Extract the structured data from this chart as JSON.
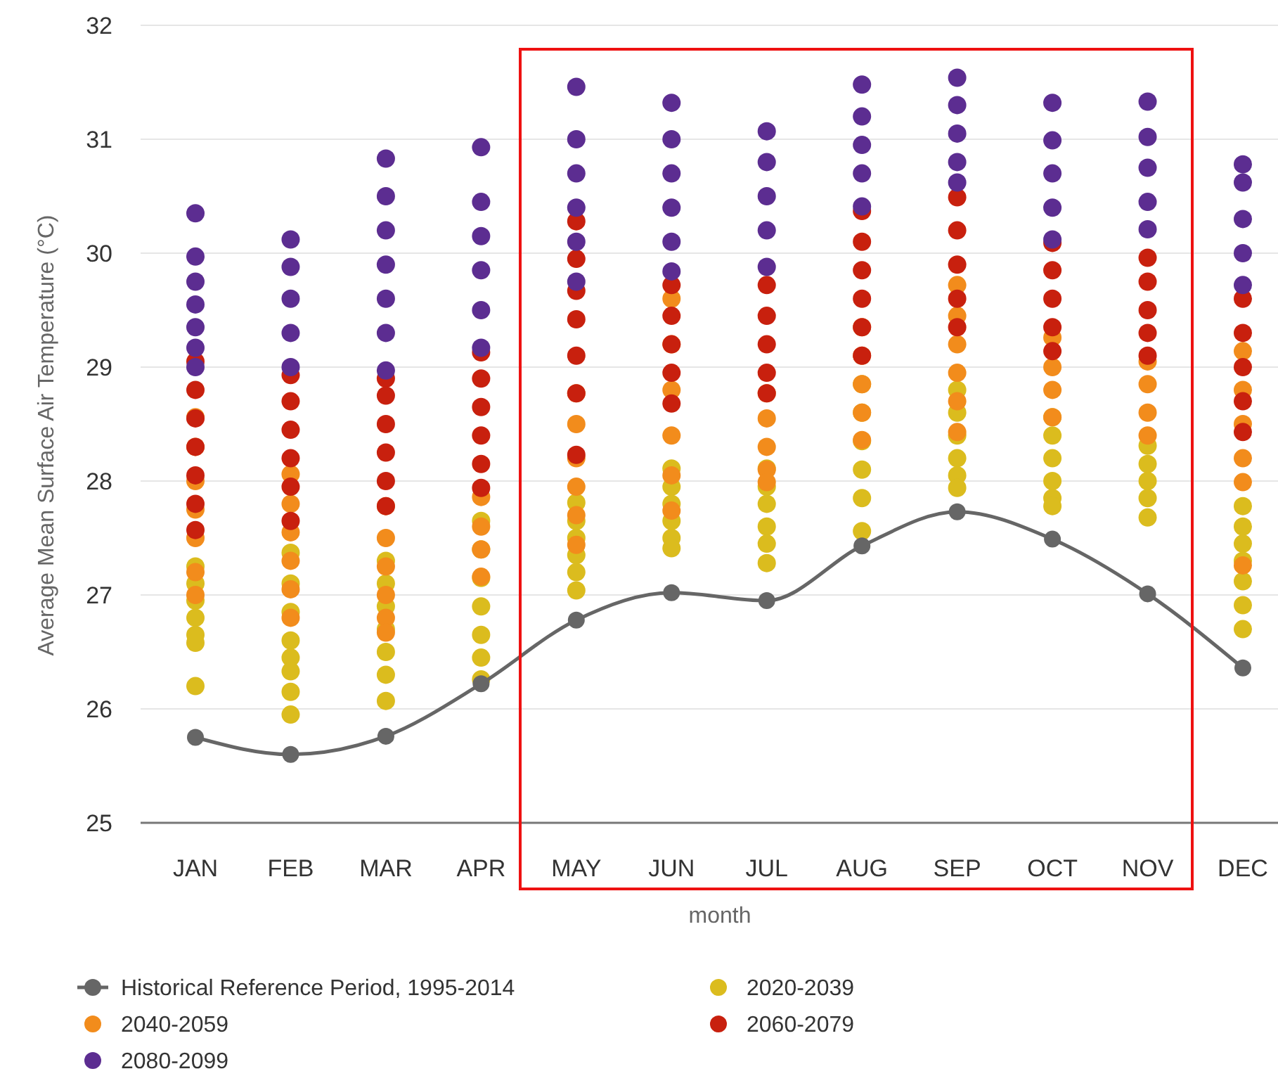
{
  "chart_data": {
    "type": "scatter",
    "xlabel": "month",
    "ylabel": "Average Mean Surface Air Temperature (°C)",
    "categories": [
      "JAN",
      "FEB",
      "MAR",
      "APR",
      "MAY",
      "JUN",
      "JUL",
      "AUG",
      "SEP",
      "OCT",
      "NOV",
      "DEC"
    ],
    "ylim": [
      25,
      32
    ],
    "yticks": [
      25,
      26,
      27,
      28,
      29,
      30,
      31,
      32
    ],
    "grid": "y",
    "legend": "bottom",
    "marker": "circle",
    "series": [
      {
        "name": "Historical Reference Period, 1995-2014",
        "type": "line",
        "color": "#666666",
        "values": [
          25.75,
          25.6,
          25.76,
          26.22,
          26.78,
          27.02,
          26.95,
          27.43,
          27.73,
          27.49,
          27.01,
          26.36
        ]
      },
      {
        "name": "2020-2039",
        "color": "#dbbc1e",
        "x": [
          "JAN",
          "JAN",
          "JAN",
          "JAN",
          "JAN",
          "JAN",
          "JAN",
          "FEB",
          "FEB",
          "FEB",
          "FEB",
          "FEB",
          "FEB",
          "FEB",
          "FEB",
          "MAR",
          "MAR",
          "MAR",
          "MAR",
          "MAR",
          "MAR",
          "MAR",
          "APR",
          "APR",
          "APR",
          "APR",
          "APR",
          "APR",
          "APR",
          "MAY",
          "MAY",
          "MAY",
          "MAY",
          "MAY",
          "MAY",
          "JUN",
          "JUN",
          "JUN",
          "JUN",
          "JUN",
          "JUN",
          "JUL",
          "JUL",
          "JUL",
          "JUL",
          "JUL",
          "JUL",
          "AUG",
          "AUG",
          "AUG",
          "AUG",
          "AUG",
          "AUG",
          "SEP",
          "SEP",
          "SEP",
          "SEP",
          "SEP",
          "SEP",
          "OCT",
          "OCT",
          "OCT",
          "OCT",
          "OCT",
          "OCT",
          "NOV",
          "NOV",
          "NOV",
          "NOV",
          "NOV",
          "DEC",
          "DEC",
          "DEC",
          "DEC",
          "DEC",
          "DEC",
          "DEC"
        ],
        "values": [
          27.25,
          27.1,
          26.95,
          26.8,
          26.65,
          26.58,
          26.2,
          27.37,
          27.1,
          26.85,
          26.6,
          26.45,
          26.33,
          26.15,
          25.95,
          27.3,
          27.1,
          26.9,
          26.7,
          26.5,
          26.3,
          26.07,
          27.65,
          27.4,
          27.15,
          26.9,
          26.65,
          26.45,
          26.26,
          27.81,
          27.65,
          27.5,
          27.35,
          27.2,
          27.04,
          28.11,
          27.95,
          27.8,
          27.65,
          27.5,
          27.41,
          28.11,
          27.95,
          27.8,
          27.6,
          27.45,
          27.28,
          28.85,
          28.6,
          28.35,
          28.1,
          27.85,
          27.56,
          28.8,
          28.6,
          28.4,
          28.2,
          28.05,
          27.94,
          28.56,
          28.4,
          28.2,
          28.0,
          27.85,
          27.78,
          28.31,
          28.15,
          28.0,
          27.85,
          27.68,
          27.78,
          27.6,
          27.45,
          27.3,
          27.12,
          26.91,
          26.7
        ]
      },
      {
        "name": "2040-2059",
        "color": "#f28c1c",
        "x": [
          "JAN",
          "JAN",
          "JAN",
          "JAN",
          "JAN",
          "JAN",
          "JAN",
          "FEB",
          "FEB",
          "FEB",
          "FEB",
          "FEB",
          "FEB",
          "MAR",
          "MAR",
          "MAR",
          "MAR",
          "MAR",
          "MAR",
          "APR",
          "APR",
          "APR",
          "APR",
          "MAY",
          "MAY",
          "MAY",
          "MAY",
          "MAY",
          "MAY",
          "JUN",
          "JUN",
          "JUN",
          "JUN",
          "JUN",
          "JUN",
          "JUL",
          "JUL",
          "JUL",
          "JUL",
          "JUL",
          "AUG",
          "AUG",
          "AUG",
          "AUG",
          "AUG",
          "SEP",
          "SEP",
          "SEP",
          "SEP",
          "SEP",
          "SEP",
          "OCT",
          "OCT",
          "OCT",
          "OCT",
          "NOV",
          "NOV",
          "NOV",
          "NOV",
          "DEC",
          "DEC",
          "DEC",
          "DEC",
          "DEC",
          "DEC"
        ],
        "values": [
          28.56,
          28.3,
          28.0,
          27.75,
          27.5,
          27.2,
          27.0,
          28.06,
          27.8,
          27.55,
          27.3,
          27.05,
          26.8,
          27.78,
          27.5,
          27.25,
          27.0,
          26.8,
          26.67,
          27.86,
          27.6,
          27.4,
          27.16,
          28.77,
          28.5,
          28.2,
          27.95,
          27.7,
          27.44,
          29.6,
          29.2,
          28.8,
          28.4,
          28.05,
          27.74,
          28.77,
          28.55,
          28.3,
          28.1,
          27.99,
          29.35,
          29.1,
          28.85,
          28.6,
          28.36,
          29.72,
          29.45,
          29.2,
          28.95,
          28.7,
          28.43,
          29.26,
          29.0,
          28.8,
          28.56,
          29.05,
          28.85,
          28.6,
          28.4,
          29.14,
          28.8,
          28.5,
          28.2,
          27.99,
          27.26
        ]
      },
      {
        "name": "2060-2079",
        "color": "#c8200e",
        "x": [
          "JAN",
          "JAN",
          "JAN",
          "JAN",
          "JAN",
          "JAN",
          "JAN",
          "FEB",
          "FEB",
          "FEB",
          "FEB",
          "FEB",
          "FEB",
          "MAR",
          "MAR",
          "MAR",
          "MAR",
          "MAR",
          "MAR",
          "APR",
          "APR",
          "APR",
          "APR",
          "APR",
          "APR",
          "MAY",
          "MAY",
          "MAY",
          "MAY",
          "MAY",
          "MAY",
          "MAY",
          "JUN",
          "JUN",
          "JUN",
          "JUN",
          "JUN",
          "JUL",
          "JUL",
          "JUL",
          "JUL",
          "JUL",
          "AUG",
          "AUG",
          "AUG",
          "AUG",
          "AUG",
          "AUG",
          "SEP",
          "SEP",
          "SEP",
          "SEP",
          "SEP",
          "OCT",
          "OCT",
          "OCT",
          "OCT",
          "OCT",
          "NOV",
          "NOV",
          "NOV",
          "NOV",
          "NOV",
          "DEC",
          "DEC",
          "DEC",
          "DEC",
          "DEC"
        ],
        "values": [
          29.05,
          28.8,
          28.55,
          28.3,
          28.05,
          27.8,
          27.57,
          28.93,
          28.7,
          28.45,
          28.2,
          27.95,
          27.65,
          28.9,
          28.75,
          28.5,
          28.25,
          28.0,
          27.78,
          29.13,
          28.9,
          28.65,
          28.4,
          28.15,
          27.94,
          30.28,
          29.95,
          29.67,
          29.42,
          29.1,
          28.77,
          28.23,
          29.72,
          29.45,
          29.2,
          28.95,
          28.68,
          29.72,
          29.45,
          29.2,
          28.95,
          28.77,
          30.37,
          30.1,
          29.85,
          29.6,
          29.35,
          29.1,
          30.49,
          30.2,
          29.9,
          29.6,
          29.35,
          30.09,
          29.85,
          29.6,
          29.35,
          29.14,
          29.96,
          29.75,
          29.5,
          29.3,
          29.1,
          29.6,
          29.3,
          29.0,
          28.7,
          28.43
        ]
      },
      {
        "name": "2080-2099",
        "color": "#5c2d91",
        "x": [
          "JAN",
          "JAN",
          "JAN",
          "JAN",
          "JAN",
          "JAN",
          "JAN",
          "FEB",
          "FEB",
          "FEB",
          "FEB",
          "FEB",
          "MAR",
          "MAR",
          "MAR",
          "MAR",
          "MAR",
          "MAR",
          "MAR",
          "APR",
          "APR",
          "APR",
          "APR",
          "APR",
          "APR",
          "MAY",
          "MAY",
          "MAY",
          "MAY",
          "MAY",
          "MAY",
          "JUN",
          "JUN",
          "JUN",
          "JUN",
          "JUN",
          "JUN",
          "JUL",
          "JUL",
          "JUL",
          "JUL",
          "JUL",
          "AUG",
          "AUG",
          "AUG",
          "AUG",
          "AUG",
          "SEP",
          "SEP",
          "SEP",
          "SEP",
          "SEP",
          "OCT",
          "OCT",
          "OCT",
          "OCT",
          "OCT",
          "NOV",
          "NOV",
          "NOV",
          "NOV",
          "NOV",
          "DEC",
          "DEC",
          "DEC",
          "DEC",
          "DEC"
        ],
        "values": [
          30.35,
          29.97,
          29.75,
          29.55,
          29.35,
          29.17,
          29.0,
          30.12,
          29.88,
          29.6,
          29.3,
          29.0,
          30.83,
          30.5,
          30.2,
          29.9,
          29.6,
          29.3,
          28.97,
          30.93,
          30.45,
          30.15,
          29.85,
          29.5,
          29.17,
          31.46,
          31.0,
          30.7,
          30.4,
          30.1,
          29.75,
          31.32,
          31.0,
          30.7,
          30.4,
          30.1,
          29.84,
          31.07,
          30.8,
          30.5,
          30.2,
          29.88,
          31.48,
          31.2,
          30.95,
          30.7,
          30.41,
          31.54,
          31.3,
          31.05,
          30.8,
          30.62,
          31.32,
          30.99,
          30.7,
          30.4,
          30.12,
          31.33,
          31.02,
          30.75,
          30.45,
          30.21,
          30.78,
          30.62,
          30.3,
          30.0,
          29.72
        ]
      }
    ]
  }
}
